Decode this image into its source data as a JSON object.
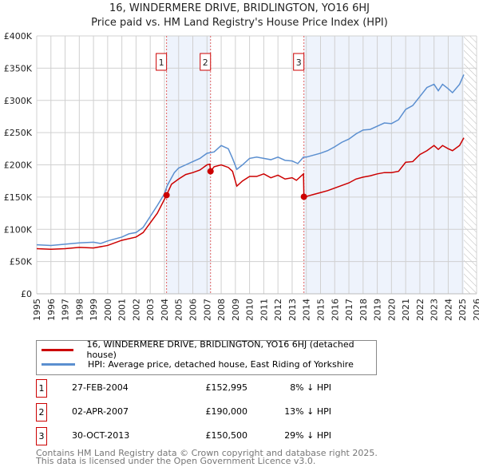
{
  "chart_data": {
    "type": "line",
    "title": "16, WINDERMERE DRIVE, BRIDLINGTON, YO16 6HJ",
    "subtitle": "Price paid vs. HM Land Registry's House Price Index (HPI)",
    "xlim": [
      1995,
      2026
    ],
    "ylim": [
      0,
      400000
    ],
    "x_ticks": [
      "1995",
      "1996",
      "1997",
      "1998",
      "1999",
      "2000",
      "2001",
      "2002",
      "2003",
      "2004",
      "2005",
      "2006",
      "2007",
      "2008",
      "2009",
      "2010",
      "2011",
      "2012",
      "2013",
      "2014",
      "2015",
      "2016",
      "2017",
      "2018",
      "2019",
      "2020",
      "2021",
      "2022",
      "2023",
      "2024",
      "2025",
      "2026"
    ],
    "y_ticks": [
      {
        "v": 0,
        "label": "£0"
      },
      {
        "v": 50000,
        "label": "£50K"
      },
      {
        "v": 100000,
        "label": "£100K"
      },
      {
        "v": 150000,
        "label": "£150K"
      },
      {
        "v": 200000,
        "label": "£200K"
      },
      {
        "v": 250000,
        "label": "£250K"
      },
      {
        "v": 300000,
        "label": "£300K"
      },
      {
        "v": 350000,
        "label": "£350K"
      },
      {
        "v": 400000,
        "label": "£400K"
      }
    ],
    "grid": true,
    "shaded_ranges": [
      [
        2004.15,
        2007.25
      ],
      [
        2013.83,
        2025.1
      ]
    ],
    "forecast_hatch_from": 2025.1,
    "series": [
      {
        "name": "16, WINDERMERE DRIVE, BRIDLINGTON, YO16 6HJ (detached house)",
        "color": "#cc0000",
        "x": [
          1995,
          1996,
          1997,
          1998,
          1999,
          2000,
          2001,
          2002,
          2002.5,
          2003,
          2003.5,
          2004.15,
          2004.5,
          2005,
          2005.5,
          2006,
          2006.5,
          2007,
          2007.2,
          2007.25,
          2007.5,
          2008,
          2008.5,
          2008.8,
          2009.1,
          2009.5,
          2010,
          2010.5,
          2011,
          2011.5,
          2012,
          2012.5,
          2013,
          2013.3,
          2013.8,
          2013.83,
          2014,
          2014.5,
          2015,
          2015.5,
          2016,
          2016.5,
          2017,
          2017.5,
          2018,
          2018.5,
          2019,
          2019.5,
          2020,
          2020.5,
          2021,
          2021.5,
          2022,
          2022.5,
          2023,
          2023.3,
          2023.6,
          2024,
          2024.3,
          2024.8,
          2025.1
        ],
        "y": [
          70000,
          69000,
          70000,
          72000,
          71000,
          75000,
          83000,
          88000,
          95000,
          110000,
          125000,
          152995,
          170000,
          178000,
          185000,
          188000,
          192000,
          200000,
          201000,
          190000,
          197000,
          200000,
          196000,
          190000,
          167000,
          175000,
          182000,
          182000,
          186000,
          180000,
          184000,
          178000,
          180000,
          176000,
          186000,
          150500,
          151000,
          154000,
          157000,
          160000,
          164000,
          168000,
          172000,
          178000,
          181000,
          183000,
          186000,
          188000,
          188000,
          190000,
          204000,
          205000,
          216000,
          222000,
          230000,
          224000,
          230000,
          225000,
          222000,
          230000,
          242000
        ]
      },
      {
        "name": "HPI: Average price, detached house, East Riding of Yorkshire",
        "color": "#5b8fd0",
        "x": [
          1995,
          1996,
          1997,
          1998,
          1999,
          1999.5,
          2000,
          2001,
          2001.5,
          2002,
          2002.5,
          2003,
          2003.5,
          2004,
          2004.2,
          2004.7,
          2005,
          2005.5,
          2006,
          2006.5,
          2007,
          2007.5,
          2008,
          2008.5,
          2008.8,
          2009.1,
          2009.5,
          2010,
          2010.5,
          2011,
          2011.5,
          2012,
          2012.5,
          2013,
          2013.4,
          2013.8,
          2014,
          2015,
          2015.5,
          2016,
          2016.5,
          2017,
          2017.5,
          2018,
          2018.5,
          2019,
          2019.5,
          2020,
          2020.5,
          2021,
          2021.5,
          2022,
          2022.5,
          2023,
          2023.3,
          2023.6,
          2024,
          2024.3,
          2024.8,
          2025.1
        ],
        "y": [
          76000,
          75000,
          77000,
          79000,
          80000,
          78000,
          82000,
          88000,
          93000,
          95000,
          103000,
          120000,
          137000,
          155000,
          168000,
          188000,
          195000,
          200000,
          205000,
          210000,
          218000,
          220000,
          230000,
          225000,
          210000,
          193000,
          200000,
          210000,
          212000,
          210000,
          208000,
          212000,
          207000,
          206000,
          202000,
          212000,
          212000,
          218000,
          222000,
          228000,
          235000,
          240000,
          248000,
          254000,
          255000,
          260000,
          265000,
          264000,
          270000,
          286000,
          292000,
          306000,
          320000,
          325000,
          315000,
          325000,
          318000,
          312000,
          325000,
          340000
        ]
      }
    ],
    "sales": [
      {
        "id": "1",
        "x": 2004.15,
        "date": "27-FEB-2004",
        "price_value": 152995,
        "price": "£152,995",
        "hpi": "8% ↓ HPI"
      },
      {
        "id": "2",
        "x": 2007.25,
        "date": "02-APR-2007",
        "price_value": 190000,
        "price": "£190,000",
        "hpi": "13% ↓ HPI"
      },
      {
        "id": "3",
        "x": 2013.83,
        "date": "30-OCT-2013",
        "price_value": 150500,
        "price": "£150,500",
        "hpi": "29% ↓ HPI"
      }
    ]
  },
  "footer": {
    "line1": "Contains HM Land Registry data © Crown copyright and database right 2025.",
    "line2": "This data is licensed under the Open Government Licence v3.0."
  }
}
